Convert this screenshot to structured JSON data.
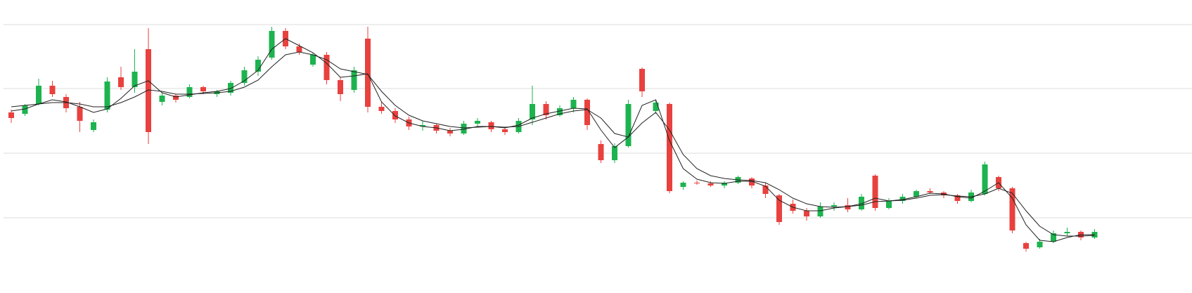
{
  "chart_data": {
    "type": "candlestick",
    "ylim": [
      -17,
      400
    ],
    "yticks": [
      90,
      182,
      274,
      365
    ],
    "grid": true,
    "up_color": "#1db34f",
    "down_color": "#e8413e",
    "open": [
      240,
      238,
      252,
      278,
      262,
      248,
      215,
      244,
      290,
      276,
      330,
      255,
      264,
      262,
      276,
      266,
      268,
      282,
      298,
      318,
      356,
      334,
      308,
      322,
      286,
      272,
      345,
      248,
      242,
      230,
      220,
      222,
      214,
      210,
      224,
      226,
      216,
      212,
      230,
      252,
      236,
      246,
      258,
      195,
      172,
      192,
      302,
      242,
      252,
      134,
      140,
      139,
      136,
      140,
      146,
      136,
      122,
      110,
      100,
      92,
      106,
      108,
      102,
      150,
      104,
      114,
      120,
      128,
      126,
      122,
      114,
      124,
      148,
      132,
      54,
      48,
      56,
      68,
      70,
      62
    ],
    "high": [
      244,
      252,
      288,
      285,
      266,
      255,
      230,
      290,
      305,
      330,
      360,
      268,
      266,
      280,
      278,
      272,
      285,
      305,
      320,
      362,
      360,
      338,
      325,
      326,
      290,
      305,
      362,
      255,
      246,
      234,
      228,
      224,
      218,
      228,
      232,
      228,
      218,
      232,
      278,
      256,
      250,
      262,
      260,
      200,
      196,
      258,
      304,
      258,
      254,
      142,
      143,
      142,
      142,
      150,
      148,
      140,
      124,
      116,
      104,
      112,
      112,
      118,
      124,
      152,
      118,
      124,
      130,
      132,
      128,
      124,
      130,
      170,
      150,
      134,
      56,
      60,
      72,
      76,
      72,
      74
    ],
    "low": [
      225,
      235,
      250,
      262,
      240,
      212,
      212,
      240,
      272,
      268,
      195,
      250,
      254,
      260,
      266,
      262,
      264,
      278,
      292,
      315,
      330,
      322,
      305,
      280,
      256,
      268,
      240,
      238,
      225,
      215,
      214,
      210,
      206,
      208,
      220,
      212,
      208,
      210,
      222,
      230,
      234,
      240,
      215,
      168,
      168,
      190,
      262,
      238,
      125,
      130,
      137,
      134,
      132,
      138,
      132,
      118,
      80,
      96,
      86,
      90,
      100,
      98,
      100,
      100,
      102,
      110,
      118,
      124,
      118,
      110,
      112,
      122,
      128,
      68,
      42,
      46,
      54,
      64,
      58,
      60
    ],
    "close": [
      232,
      250,
      278,
      266,
      246,
      228,
      226,
      284,
      276,
      298,
      212,
      264,
      258,
      276,
      270,
      270,
      282,
      300,
      315,
      356,
      334,
      326,
      322,
      286,
      266,
      300,
      248,
      242,
      230,
      220,
      222,
      214,
      210,
      224,
      228,
      216,
      212,
      228,
      252,
      236,
      246,
      258,
      222,
      172,
      192,
      252,
      270,
      254,
      128,
      140,
      139,
      136,
      140,
      148,
      136,
      124,
      84,
      100,
      92,
      106,
      108,
      102,
      120,
      104,
      114,
      120,
      128,
      126,
      122,
      114,
      126,
      166,
      132,
      72,
      46,
      56,
      68,
      70,
      62,
      70
    ],
    "lines": [
      {
        "color": "#222222",
        "values": [
          242,
          245,
          252,
          258,
          255,
          248,
          240,
          245,
          260,
          278,
          285,
          268,
          262,
          265,
          268,
          270,
          274,
          285,
          300,
          330,
          345,
          335,
          325,
          310,
          290,
          292,
          295,
          255,
          235,
          225,
          220,
          218,
          214,
          216,
          220,
          220,
          218,
          222,
          232,
          238,
          242,
          246,
          245,
          215,
          190,
          205,
          250,
          258,
          200,
          160,
          145,
          140,
          139,
          142,
          142,
          135,
          115,
          105,
          100,
          100,
          104,
          106,
          110,
          118,
          114,
          116,
          120,
          125,
          124,
          120,
          118,
          128,
          140,
          118,
          80,
          58,
          56,
          62,
          66,
          66
        ]
      },
      {
        "color": "#222222",
        "values": [
          248,
          250,
          252,
          254,
          254,
          252,
          248,
          248,
          254,
          262,
          272,
          270,
          266,
          266,
          267,
          268,
          270,
          276,
          286,
          305,
          322,
          326,
          322,
          315,
          302,
          298,
          294,
          270,
          250,
          236,
          228,
          224,
          220,
          218,
          219,
          220,
          219,
          220,
          226,
          232,
          238,
          242,
          244,
          232,
          210,
          205,
          225,
          240,
          215,
          180,
          160,
          150,
          146,
          144,
          143,
          140,
          130,
          118,
          110,
          106,
          105,
          106,
          108,
          113,
          114,
          115,
          118,
          122,
          123,
          121,
          120,
          124,
          132,
          125,
          100,
          78,
          66,
          64,
          64,
          65
        ]
      }
    ]
  }
}
